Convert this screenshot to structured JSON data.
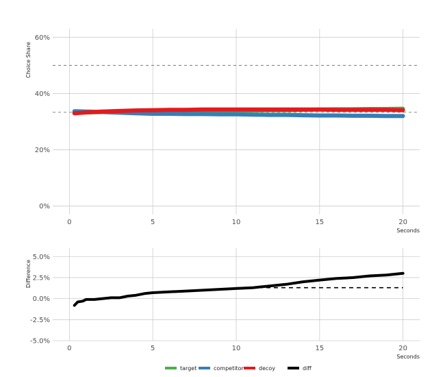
{
  "chart_data": [
    {
      "type": "line",
      "ylabel": "Choice Share",
      "xlabel": "Seconds",
      "xlim": [
        -1,
        21
      ],
      "ylim": [
        -0.03,
        0.63
      ],
      "xticks": [
        0,
        5,
        10,
        15,
        20
      ],
      "xtick_labels": [
        "0",
        "5",
        "10",
        "15",
        "20"
      ],
      "yticks": [
        0,
        0.2,
        0.4,
        0.6
      ],
      "ytick_labels": [
        "0%",
        "20%",
        "40%",
        "60%"
      ],
      "grid": true,
      "reference_lines": [
        {
          "y": 0.5,
          "style": "dashed"
        },
        {
          "y": 0.3333,
          "style": "dashed"
        }
      ],
      "x": [
        0.3,
        1,
        2,
        3,
        4,
        5,
        6,
        7,
        8,
        9,
        10,
        11,
        12,
        13,
        14,
        15,
        16,
        17,
        18,
        19,
        20
      ],
      "series": [
        {
          "name": "target",
          "color": "#4daf4a",
          "values": [
            0.333,
            0.333,
            0.334,
            0.335,
            0.336,
            0.337,
            0.338,
            0.338,
            0.339,
            0.339,
            0.34,
            0.34,
            0.341,
            0.341,
            0.342,
            0.343,
            0.344,
            0.344,
            0.345,
            0.345,
            0.346
          ]
        },
        {
          "name": "competitor",
          "color": "#377eb8",
          "values": [
            0.337,
            0.336,
            0.334,
            0.332,
            0.33,
            0.328,
            0.328,
            0.327,
            0.327,
            0.326,
            0.326,
            0.325,
            0.324,
            0.324,
            0.323,
            0.322,
            0.322,
            0.321,
            0.321,
            0.32,
            0.32
          ]
        },
        {
          "name": "decoy",
          "color": "#e41a1c",
          "values": [
            0.33,
            0.333,
            0.336,
            0.338,
            0.34,
            0.341,
            0.342,
            0.342,
            0.343,
            0.343,
            0.343,
            0.343,
            0.343,
            0.343,
            0.343,
            0.343,
            0.342,
            0.342,
            0.342,
            0.342,
            0.341
          ]
        }
      ]
    },
    {
      "type": "line",
      "ylabel": "Difference",
      "xlabel": "Seconds",
      "xlim": [
        -1,
        21
      ],
      "ylim": [
        -0.05,
        0.06
      ],
      "xticks": [
        0,
        5,
        10,
        15,
        20
      ],
      "xtick_labels": [
        "0",
        "5",
        "10",
        "15",
        "20"
      ],
      "yticks": [
        -0.05,
        -0.025,
        0,
        0.025,
        0.05
      ],
      "ytick_labels": [
        "-5.0%",
        "-2.5%",
        "0.0%",
        "2.5%",
        "5.0%"
      ],
      "grid": true,
      "x": [
        0.3,
        0.5,
        0.8,
        1,
        1.5,
        2,
        2.5,
        3,
        3.5,
        4,
        4.5,
        5,
        6,
        7,
        8,
        9,
        10,
        11,
        12,
        13,
        14,
        15,
        16,
        17,
        18,
        19,
        20
      ],
      "series": [
        {
          "name": "diff",
          "color": "#000000",
          "values": [
            -0.008,
            -0.004,
            -0.003,
            -0.001,
            -0.001,
            0.0,
            0.001,
            0.001,
            0.003,
            0.004,
            0.006,
            0.007,
            0.008,
            0.009,
            0.01,
            0.011,
            0.012,
            0.013,
            0.015,
            0.017,
            0.02,
            0.022,
            0.024,
            0.025,
            0.027,
            0.028,
            0.03
          ]
        },
        {
          "name": "diff_dashed",
          "color": "#000000",
          "style": "dashed",
          "x": [
            10,
            20
          ],
          "values": [
            0.013,
            0.013
          ]
        }
      ]
    }
  ],
  "legend": {
    "placement": "bottom",
    "items": [
      {
        "label": "target",
        "color": "#4daf4a"
      },
      {
        "label": "competitor",
        "color": "#377eb8"
      },
      {
        "label": "decoy",
        "color": "#e41a1c"
      },
      {
        "label": "diff",
        "color": "#000000"
      }
    ]
  }
}
